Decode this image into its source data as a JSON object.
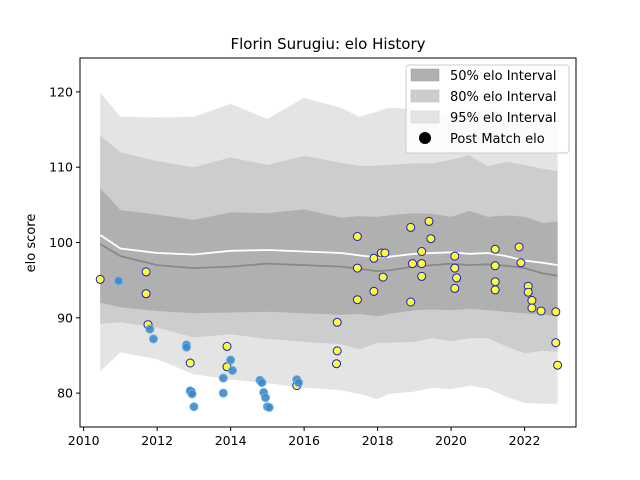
{
  "chart_data": {
    "type": "line",
    "title": "Florin Surugiu: elo History",
    "xlabel": "",
    "ylabel": "elo score",
    "xlim": [
      2009.9,
      2023.4
    ],
    "ylim": [
      75.5,
      124.5
    ],
    "x_ticks": [
      2010,
      2012,
      2014,
      2016,
      2018,
      2020,
      2022
    ],
    "y_ticks": [
      80,
      90,
      100,
      110,
      120
    ],
    "grid": false,
    "legend_position": "top-right",
    "legend": {
      "interval_50": "50% elo Interval",
      "interval_80": "80% elo Interval",
      "interval_95": "95% elo Interval",
      "post_match": "Post Match elo"
    },
    "colors": {
      "band_50": "#b0b0b0",
      "band_80": "#cdcdcd",
      "band_95": "#e4e4e4",
      "mean_line": "#888888",
      "median_line": "#ffffff",
      "highlight_fill": "#ffff33",
      "highlight_edge": "#1a1acc",
      "early_fill": "#3a88cc",
      "early_edge": "#6aaedd"
    },
    "bands": {
      "x": [
        2010.45,
        2011.0,
        2012.0,
        2013.0,
        2014.0,
        2015.0,
        2016.0,
        2017.0,
        2017.5,
        2018.0,
        2018.3,
        2019.0,
        2019.5,
        2020.0,
        2020.5,
        2021.0,
        2021.5,
        2022.0,
        2022.5,
        2022.9
      ],
      "mean": [
        99.8,
        98.2,
        97.0,
        96.6,
        96.8,
        97.2,
        97.0,
        96.8,
        96.5,
        96.2,
        96.3,
        96.8,
        97.0,
        97.2,
        97.0,
        97.1,
        96.9,
        96.6,
        95.9,
        95.6
      ],
      "median": [
        101.0,
        99.2,
        98.6,
        98.4,
        98.9,
        99.0,
        98.8,
        98.6,
        98.3,
        98.0,
        98.1,
        98.5,
        98.6,
        98.7,
        98.5,
        98.6,
        98.2,
        97.6,
        97.3,
        97.0
      ],
      "p50_lo": [
        92.0,
        91.4,
        90.9,
        90.6,
        90.7,
        90.8,
        90.6,
        90.4,
        90.5,
        90.2,
        90.5,
        91.0,
        91.1,
        91.0,
        91.2,
        91.0,
        90.8,
        90.6,
        90.4,
        90.2
      ],
      "p50_hi": [
        107.2,
        104.3,
        103.7,
        103.0,
        104.0,
        103.9,
        104.4,
        103.3,
        103.5,
        103.4,
        103.6,
        103.9,
        103.8,
        103.4,
        104.2,
        103.4,
        103.6,
        103.4,
        102.6,
        102.8
      ],
      "p80_lo": [
        89.2,
        89.4,
        88.7,
        87.4,
        87.8,
        87.2,
        86.8,
        86.5,
        85.8,
        86.7,
        86.7,
        86.8,
        87.3,
        86.9,
        87.3,
        87.3,
        86.2,
        85.3,
        85.6,
        85.5
      ],
      "p80_hi": [
        114.2,
        112.0,
        110.8,
        110.0,
        111.3,
        110.3,
        111.5,
        110.6,
        110.2,
        110.2,
        110.3,
        110.5,
        110.5,
        111.0,
        111.6,
        110.1,
        110.7,
        110.3,
        109.8,
        109.5
      ],
      "p95_lo": [
        82.9,
        85.4,
        84.5,
        82.5,
        81.8,
        81.3,
        80.7,
        80.4,
        79.9,
        79.2,
        79.9,
        80.2,
        80.7,
        80.5,
        81.0,
        80.6,
        79.5,
        78.7,
        78.6,
        78.6
      ],
      "p95_hi": [
        119.9,
        116.7,
        116.6,
        116.7,
        118.4,
        116.4,
        119.2,
        117.9,
        116.7,
        117.4,
        117.9,
        117.7,
        116.8,
        117.4,
        117.6,
        117.6,
        117.2,
        116.8,
        116.7,
        116.4
      ]
    },
    "series": [
      {
        "name": "Post Match elo",
        "style": "highlight",
        "points": [
          [
            2010.45,
            95.1
          ],
          [
            2011.7,
            96.1
          ],
          [
            2011.7,
            93.2
          ],
          [
            2011.75,
            89.1
          ],
          [
            2012.9,
            84.0
          ],
          [
            2012.92,
            80.2
          ],
          [
            2013.9,
            86.2
          ],
          [
            2013.9,
            83.5
          ],
          [
            2015.8,
            81.0
          ],
          [
            2016.9,
            89.4
          ],
          [
            2016.9,
            85.6
          ],
          [
            2016.88,
            83.9
          ],
          [
            2017.45,
            100.8
          ],
          [
            2017.45,
            96.6
          ],
          [
            2017.45,
            92.4
          ],
          [
            2017.9,
            97.9
          ],
          [
            2017.9,
            93.5
          ],
          [
            2018.1,
            98.6
          ],
          [
            2018.2,
            98.6
          ],
          [
            2018.15,
            95.4
          ],
          [
            2018.9,
            102.0
          ],
          [
            2018.9,
            92.1
          ],
          [
            2018.95,
            97.2
          ],
          [
            2019.2,
            98.8
          ],
          [
            2019.2,
            95.5
          ],
          [
            2019.2,
            97.2
          ],
          [
            2019.4,
            102.8
          ],
          [
            2019.45,
            100.5
          ],
          [
            2020.1,
            98.2
          ],
          [
            2020.1,
            96.6
          ],
          [
            2020.15,
            95.3
          ],
          [
            2020.1,
            93.9
          ],
          [
            2021.2,
            99.1
          ],
          [
            2021.2,
            96.9
          ],
          [
            2021.2,
            94.8
          ],
          [
            2021.2,
            93.7
          ],
          [
            2021.85,
            99.4
          ],
          [
            2021.9,
            97.3
          ],
          [
            2022.1,
            94.2
          ],
          [
            2022.1,
            93.4
          ],
          [
            2022.2,
            92.3
          ],
          [
            2022.2,
            91.3
          ],
          [
            2022.45,
            90.9
          ],
          [
            2022.85,
            90.8
          ],
          [
            2022.85,
            86.7
          ],
          [
            2022.9,
            83.7
          ]
        ]
      },
      {
        "name": "",
        "style": "early",
        "points": [
          [
            2010.95,
            94.9
          ],
          [
            2011.8,
            88.5
          ],
          [
            2011.9,
            87.2
          ],
          [
            2012.8,
            86.4
          ],
          [
            2012.8,
            86.1
          ],
          [
            2012.9,
            80.3
          ],
          [
            2012.95,
            79.9
          ],
          [
            2013.0,
            78.2
          ],
          [
            2013.8,
            82.0
          ],
          [
            2013.8,
            80.0
          ],
          [
            2014.0,
            84.4
          ],
          [
            2014.05,
            83.0
          ],
          [
            2014.8,
            81.7
          ],
          [
            2014.85,
            81.4
          ],
          [
            2014.9,
            80.1
          ],
          [
            2014.95,
            79.4
          ],
          [
            2015.0,
            78.2
          ],
          [
            2015.05,
            78.1
          ],
          [
            2015.8,
            81.8
          ],
          [
            2015.85,
            81.4
          ]
        ]
      }
    ]
  }
}
